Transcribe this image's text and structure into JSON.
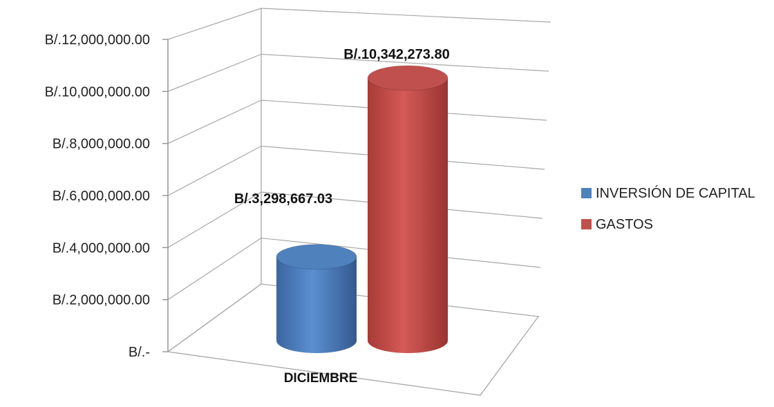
{
  "chart_data": {
    "type": "bar",
    "style": "3d-cylinder",
    "categories": [
      "DICIEMBRE"
    ],
    "series": [
      {
        "name": "INVERSIÓN DE CAPITAL",
        "values": [
          3298667.03
        ],
        "label": "B/.3,298,667.03",
        "color": "#4f81bd"
      },
      {
        "name": "GASTOS",
        "values": [
          10342273.8
        ],
        "label": "B/.10,342,273.80",
        "color": "#c0504d"
      }
    ],
    "yticks": [
      {
        "value": 0,
        "label": "B/.-"
      },
      {
        "value": 2000000,
        "label": "B/.2,000,000.00"
      },
      {
        "value": 4000000,
        "label": "B/.4,000,000.00"
      },
      {
        "value": 6000000,
        "label": "B/.6,000,000.00"
      },
      {
        "value": 8000000,
        "label": "B/.8,000,000.00"
      },
      {
        "value": 10000000,
        "label": "B/.10,000,000.00"
      },
      {
        "value": 12000000,
        "label": "B/.12,000,000.00"
      }
    ],
    "ylim": [
      0,
      12000000
    ],
    "grid": true,
    "legend_position": "right",
    "title": "",
    "xlabel": "",
    "ylabel": ""
  }
}
